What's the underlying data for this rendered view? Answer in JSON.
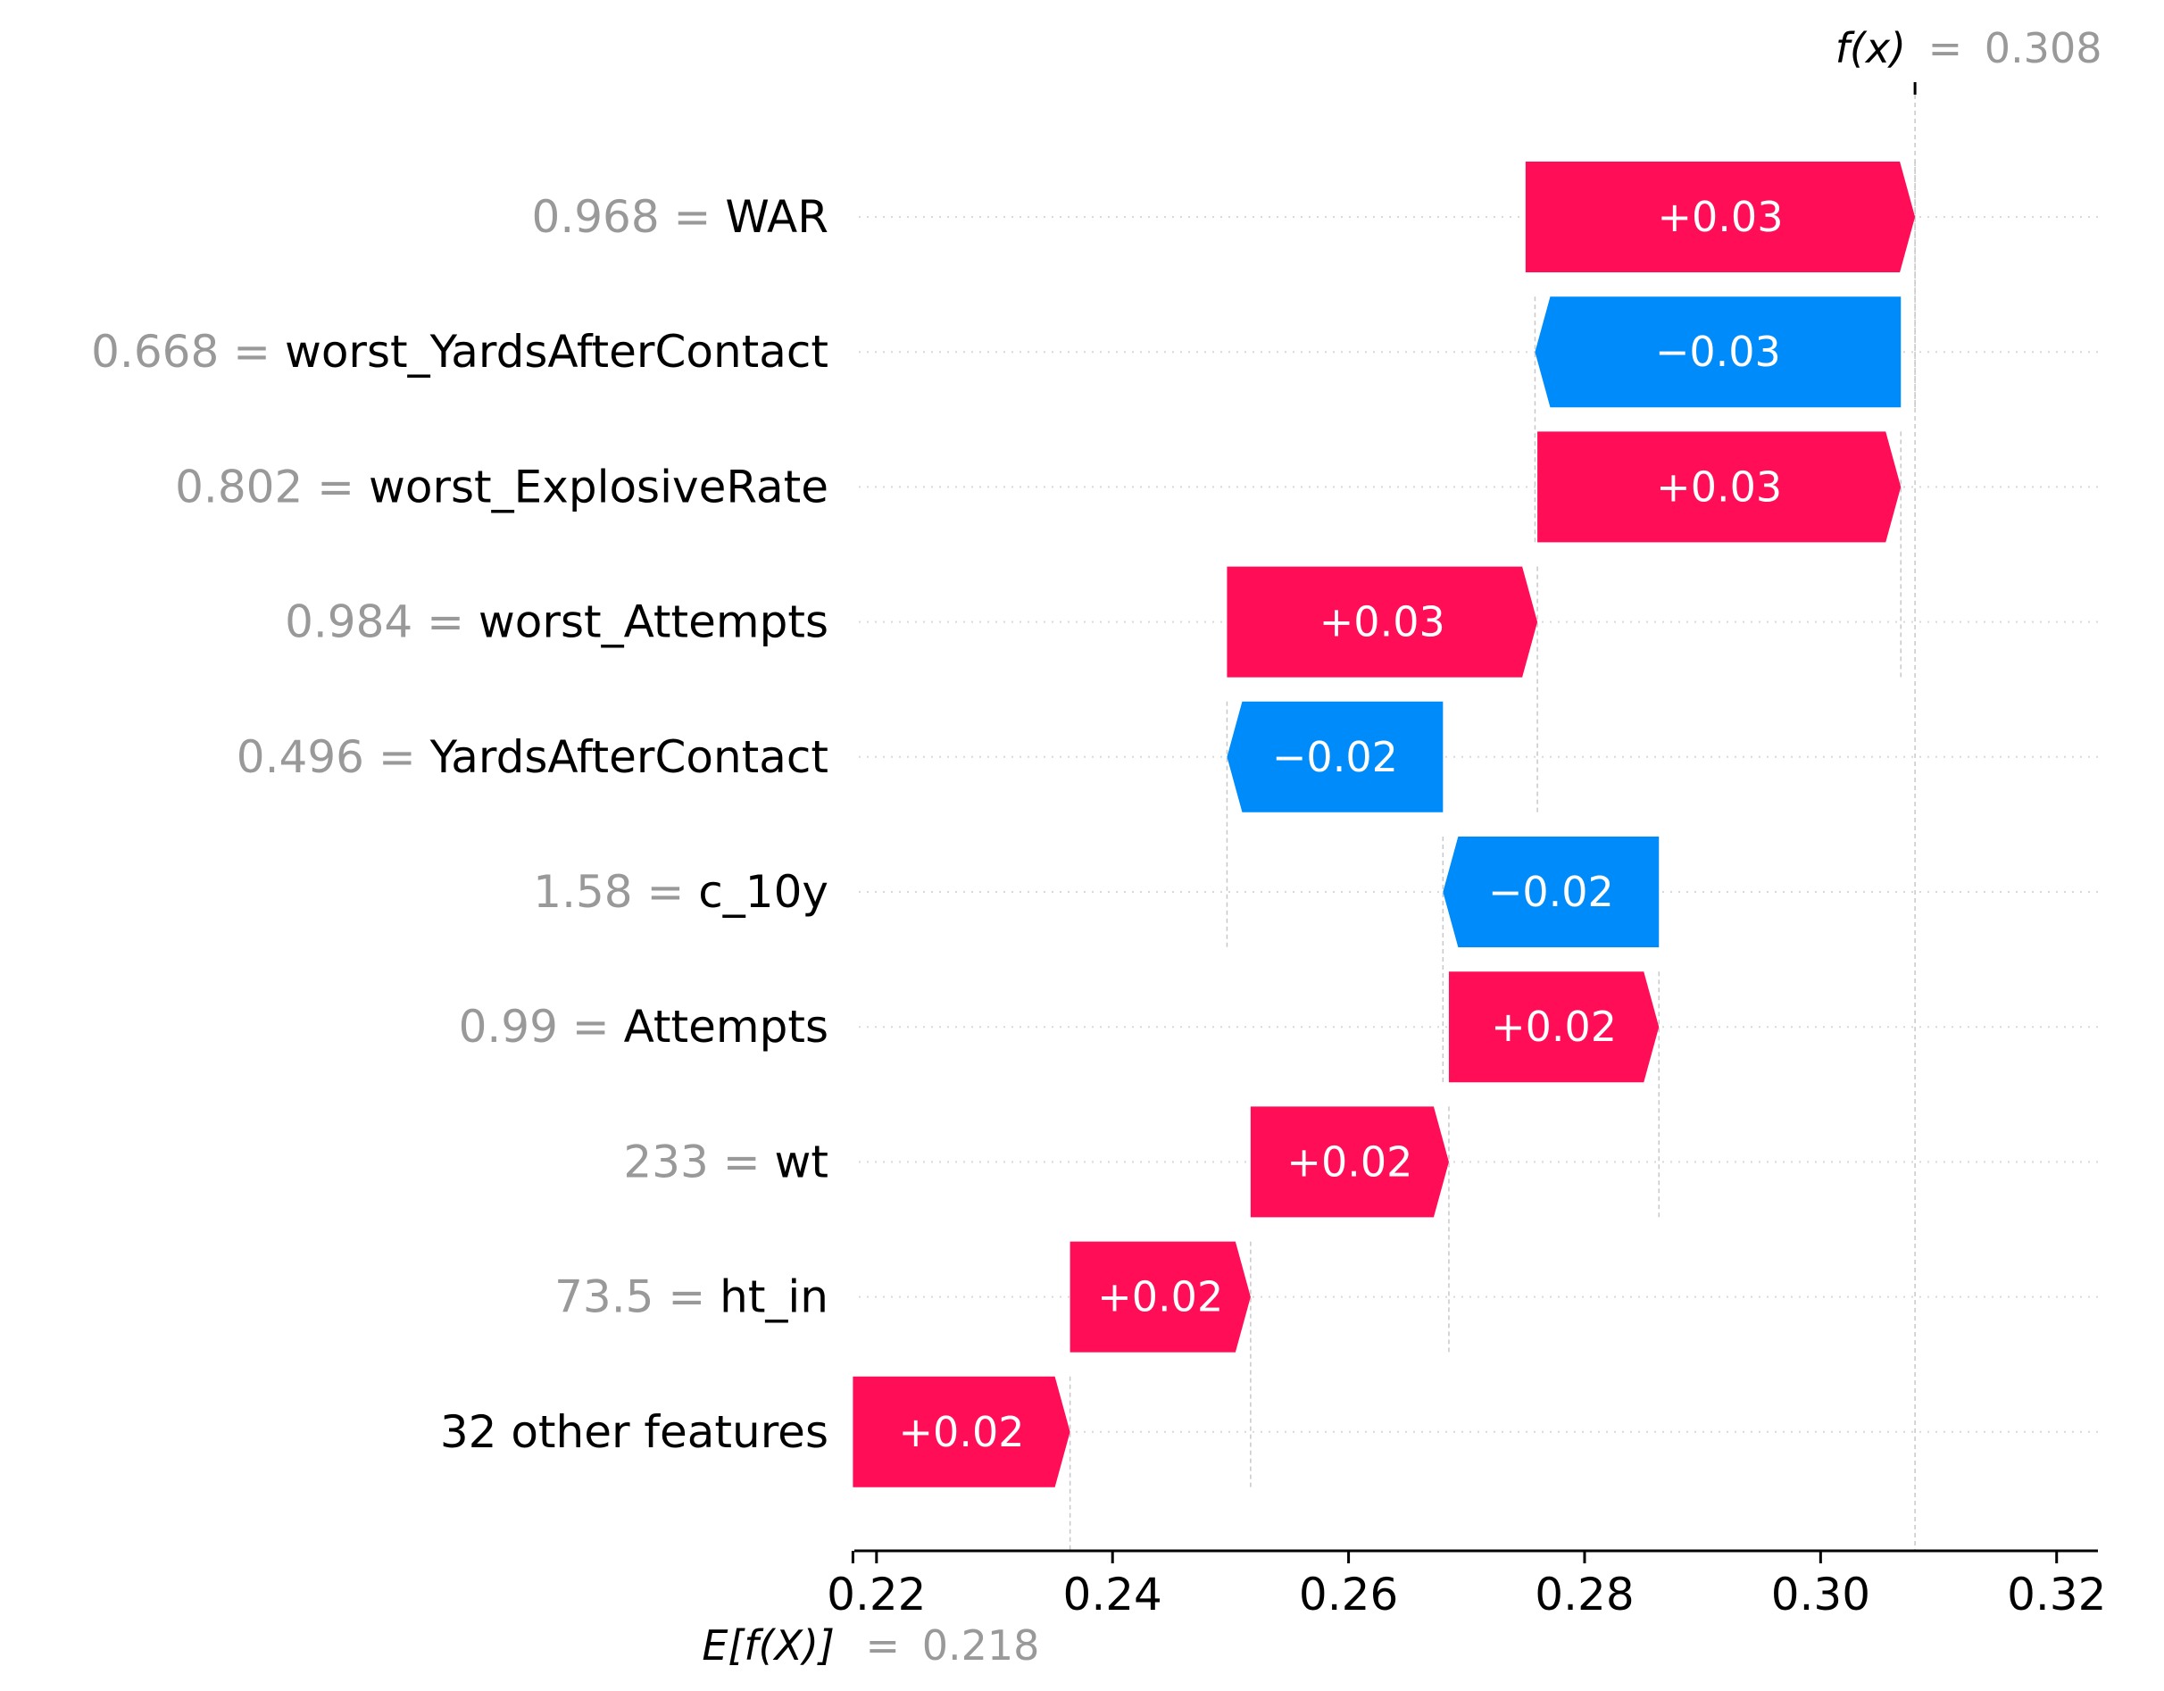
{
  "chart_data": {
    "type": "waterfall",
    "base_value": {
      "label_prefix": "E[f(X)]",
      "equals": "=",
      "value": 0.218,
      "value_text": "0.218"
    },
    "output_value": {
      "label_prefix": "f(x)",
      "equals": "=",
      "value": 0.308,
      "value_text": "0.308"
    },
    "xlim": [
      0.2185,
      0.3235
    ],
    "xticks": [
      {
        "value": 0.22,
        "label": "0.22"
      },
      {
        "value": 0.24,
        "label": "0.24"
      },
      {
        "value": 0.26,
        "label": "0.26"
      },
      {
        "value": 0.28,
        "label": "0.28"
      },
      {
        "value": 0.3,
        "label": "0.30"
      },
      {
        "value": 0.32,
        "label": "0.32"
      }
    ],
    "features": [
      {
        "value": "0.968",
        "name": "WAR",
        "start": 0.275,
        "end": 0.308,
        "label": "+0.03"
      },
      {
        "value": "0.668",
        "name": "worst_YardsAfterContact",
        "start": 0.3068,
        "end": 0.2758,
        "label": "−0.03"
      },
      {
        "value": "0.802",
        "name": "worst_ExplosiveRate",
        "start": 0.276,
        "end": 0.3068,
        "label": "+0.03"
      },
      {
        "value": "0.984",
        "name": "worst_Attempts",
        "start": 0.2497,
        "end": 0.276,
        "label": "+0.03"
      },
      {
        "value": "0.496",
        "name": "YardsAfterContact",
        "start": 0.268,
        "end": 0.2497,
        "label": "−0.02"
      },
      {
        "value": "1.58",
        "name": "c_10y",
        "start": 0.2863,
        "end": 0.268,
        "label": "−0.02"
      },
      {
        "value": "0.99",
        "name": "Attempts",
        "start": 0.2685,
        "end": 0.2863,
        "label": "+0.02"
      },
      {
        "value": "233",
        "name": "wt",
        "start": 0.2517,
        "end": 0.2685,
        "label": "+0.02"
      },
      {
        "value": "73.5",
        "name": "ht_in",
        "start": 0.2364,
        "end": 0.2517,
        "label": "+0.02"
      },
      {
        "value": "",
        "name": "32 other features",
        "start": 0.218,
        "end": 0.2364,
        "label": "+0.02"
      }
    ],
    "colors": {
      "positive": "#ff0d57",
      "negative": "#008bfb",
      "muted": "#999999",
      "guide": "#c8c8c8"
    }
  }
}
